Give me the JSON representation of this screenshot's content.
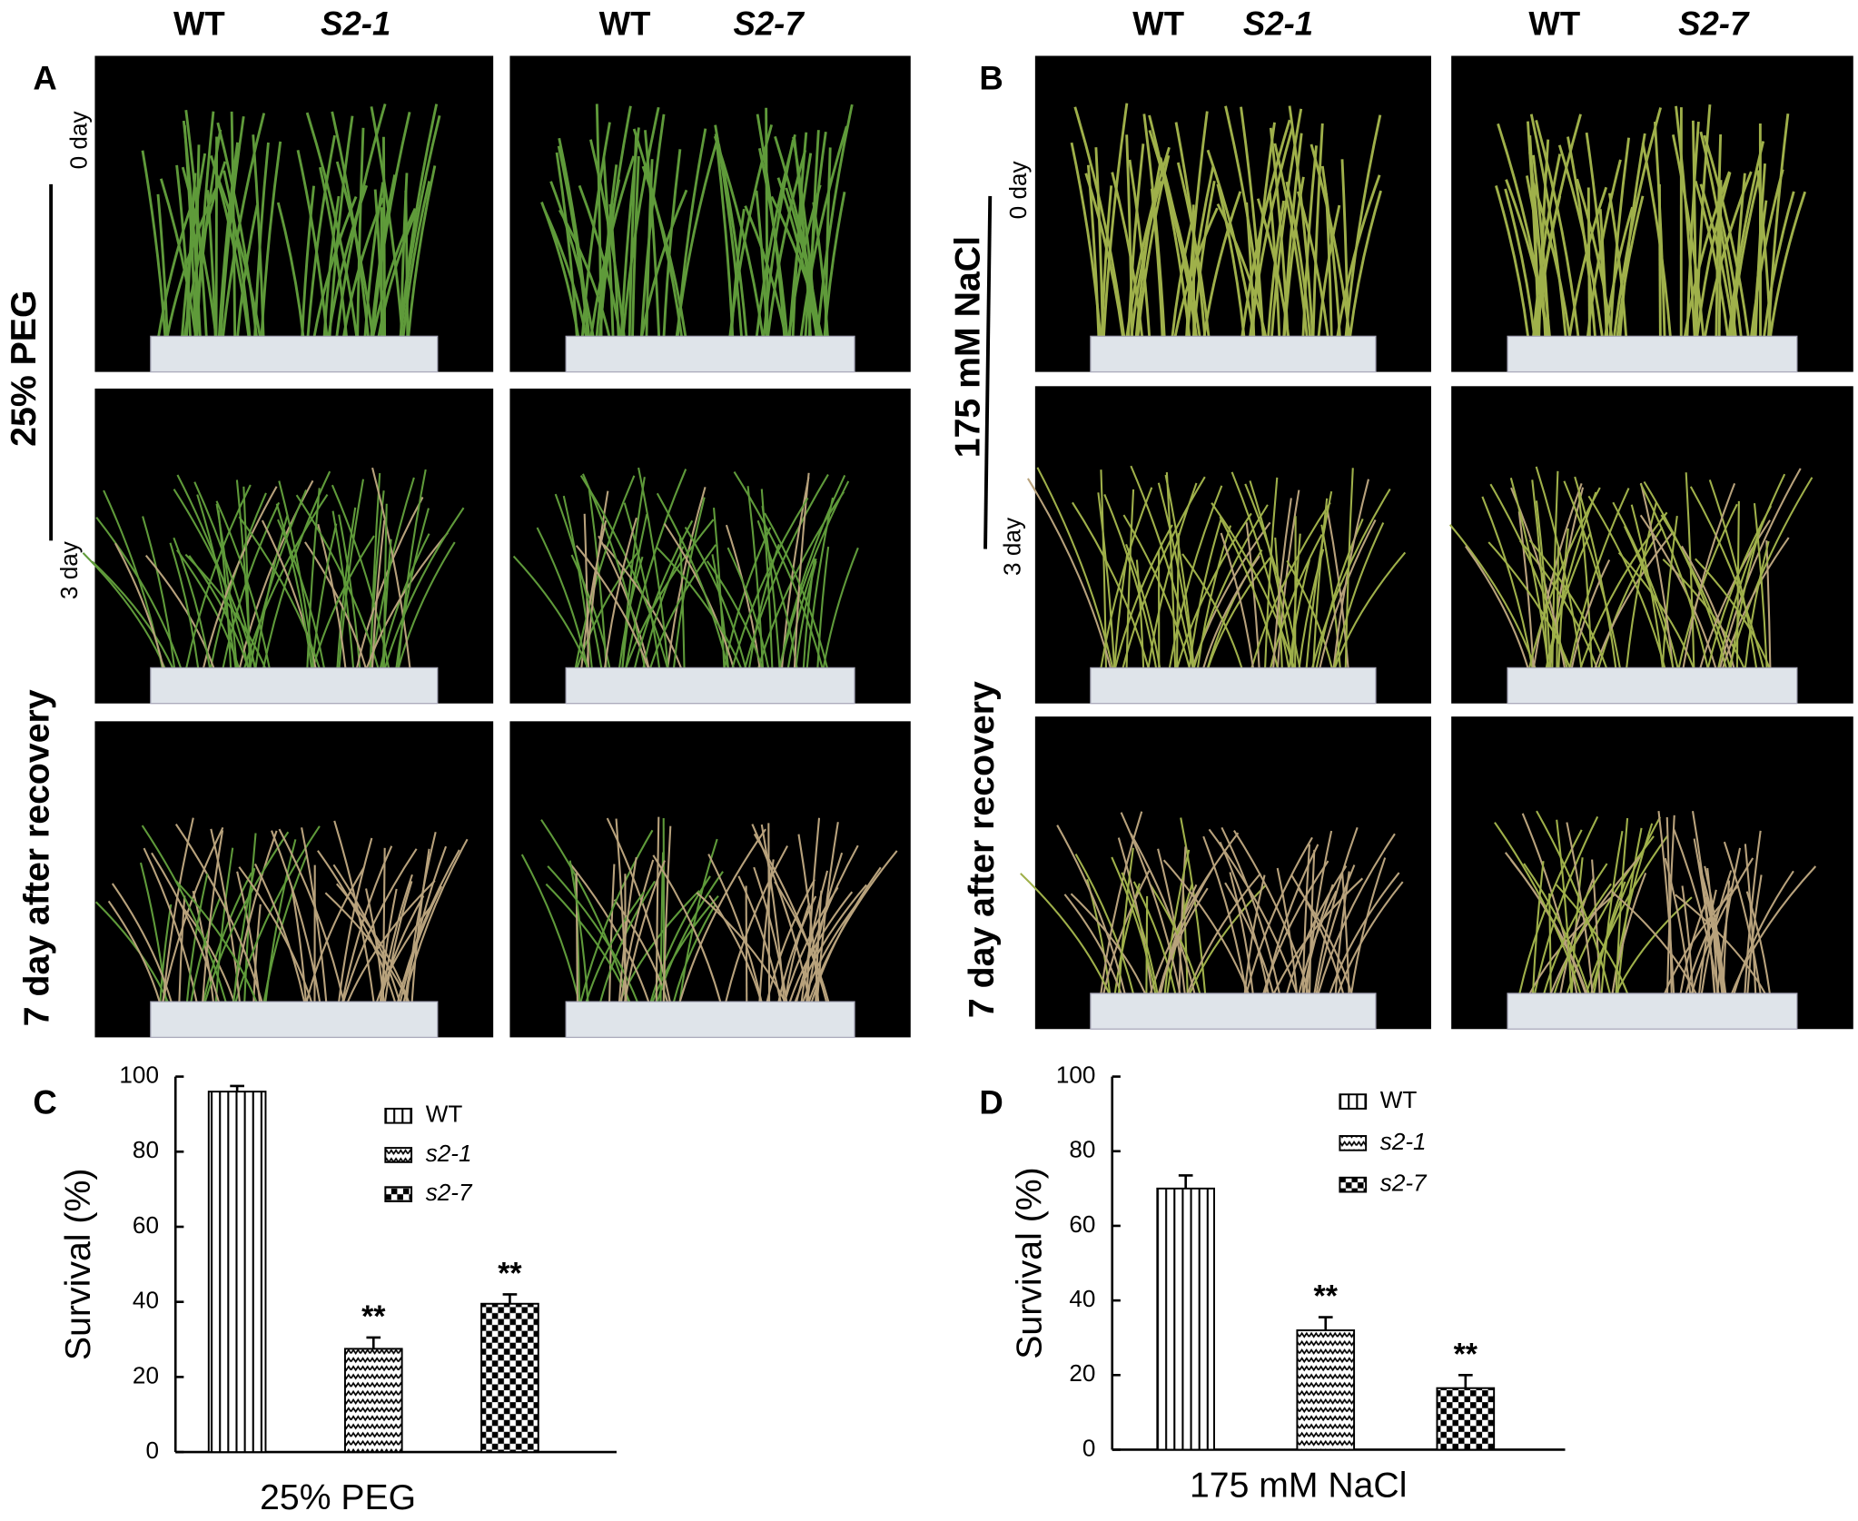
{
  "figure": {
    "panel_a": {
      "label": "A",
      "columns": [
        {
          "wt": "WT",
          "line": "S2-1"
        },
        {
          "wt": "WT",
          "line": "S2-7"
        }
      ],
      "treatment": "25% PEG",
      "start": "0 day",
      "end": "3 day",
      "recovery": "7 day after recovery"
    },
    "panel_b": {
      "label": "B",
      "columns": [
        {
          "wt": "WT",
          "line": "S2-1"
        },
        {
          "wt": "WT",
          "line": "S2-7"
        }
      ],
      "treatment": "175 mM NaCl",
      "start": "0 day",
      "end": "3 day",
      "recovery": "7 day after recovery"
    }
  },
  "chart_data": [
    {
      "type": "bar",
      "panel": "C",
      "xlabel": "25% PEG",
      "ylabel": "Survival (%)",
      "categories": [
        null
      ],
      "ylim": [
        0,
        100
      ],
      "yticks": [
        0,
        20,
        40,
        60,
        80,
        100
      ],
      "series": [
        {
          "name": "WT",
          "color": "#000000",
          "pattern": "vertical",
          "italic": false,
          "values": [
            96
          ],
          "errors": [
            1.5
          ]
        },
        {
          "name": "s2-1",
          "color": "#000000",
          "pattern": "zigzag",
          "italic": true,
          "values": [
            27.5
          ],
          "errors": [
            3
          ],
          "annotations": [
            "**"
          ]
        },
        {
          "name": "s2-7",
          "color": "#000000",
          "pattern": "checker",
          "italic": true,
          "values": [
            39.5
          ],
          "errors": [
            2.5
          ],
          "annotations": [
            "**"
          ]
        }
      ]
    },
    {
      "type": "bar",
      "panel": "D",
      "xlabel": "175 mM NaCl",
      "ylabel": "Survival (%)",
      "categories": [
        null
      ],
      "ylim": [
        0,
        100
      ],
      "yticks": [
        0,
        20,
        40,
        60,
        80,
        100
      ],
      "series": [
        {
          "name": "WT",
          "color": "#000000",
          "pattern": "vertical",
          "italic": false,
          "values": [
            70
          ],
          "errors": [
            3.5
          ]
        },
        {
          "name": "s2-1",
          "color": "#000000",
          "pattern": "zigzag",
          "italic": true,
          "values": [
            32
          ],
          "errors": [
            3.5
          ],
          "annotations": [
            "**"
          ]
        },
        {
          "name": "s2-7",
          "color": "#000000",
          "pattern": "checker",
          "italic": true,
          "values": [
            16.5
          ],
          "errors": [
            3.5
          ],
          "annotations": [
            "**"
          ]
        }
      ]
    }
  ]
}
